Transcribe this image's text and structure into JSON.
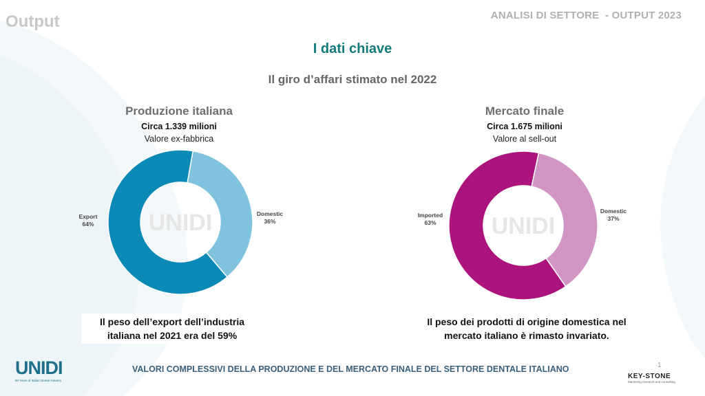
{
  "header": {
    "section_label": "Output",
    "report_label": "ANALISI DI SETTORE  - OUTPUT 2023"
  },
  "main": {
    "title": "I dati chiave",
    "subtitle": "Il giro d’affari stimato nel 2022"
  },
  "charts": [
    {
      "title": "Produzione italiana",
      "amount": "Circa 1.339 milioni",
      "basis": "Valore ex-fabbrica",
      "note": "Il peso dell’export dell’industria italiana nel 2021 era del 59%"
    },
    {
      "title": "Mercato finale",
      "amount": "Circa 1.675 milioni",
      "basis": "Valore al sell-out",
      "note": "Il peso dei prodotti di origine domestica nel mercato italiano è rimasto invariato."
    }
  ],
  "chart_data": [
    {
      "type": "pie",
      "donut": true,
      "title": "Produzione italiana",
      "categories": [
        "Domestic",
        "Export"
      ],
      "values": [
        36,
        64
      ],
      "value_labels": [
        "36%",
        "64%"
      ],
      "colors": [
        "#7fc3df",
        "#0b8ab8"
      ]
    },
    {
      "type": "pie",
      "donut": true,
      "title": "Mercato finale",
      "categories": [
        "Domestic",
        "Imported"
      ],
      "values": [
        37,
        63
      ],
      "value_labels": [
        "37%",
        "63%"
      ],
      "colors": [
        "#d195c3",
        "#ab147d"
      ]
    }
  ],
  "watermark": "UNIDI",
  "footer": {
    "caption": "VALORI COMPLESSIVI DELLA PRODUZIONE E DEL MERCATO FINALE DEL SETTORE DENTALE ITALIANO",
    "page_number": "1"
  },
  "logos": {
    "unidi": "UNIDI",
    "unidi_tagline": "50 Years of Italian Dental Industry",
    "keystone": "KEY-STONE",
    "keystone_tagline": "Marketing research and consulting"
  }
}
